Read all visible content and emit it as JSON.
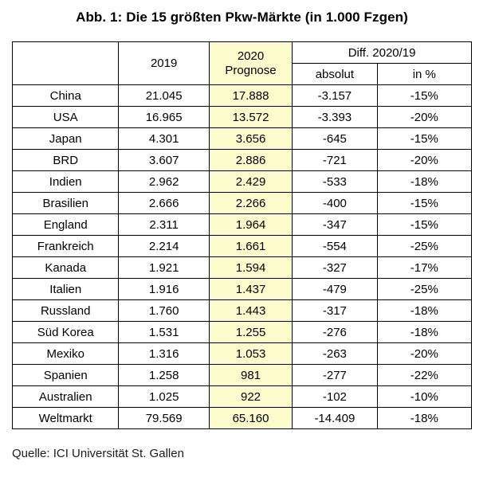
{
  "title": "Abb. 1: Die 15 größten Pkw-Märkte (in 1.000 Fzgen)",
  "source": "Quelle: ICI Universität St. Gallen",
  "colors": {
    "highlight": "#fbfbcb",
    "border": "#000000",
    "background": "#ffffff"
  },
  "table": {
    "header": {
      "corner": "",
      "col2019": "2019",
      "col2020_line1": "2020",
      "col2020_line2": "Prognose",
      "diff_group": "Diff. 2020/19",
      "absolut": "absolut",
      "percent": "in %"
    },
    "rows": [
      {
        "name": "China",
        "y2019": "21.045",
        "y2020": "17.888",
        "abs": "-3.157",
        "pct": "-15%"
      },
      {
        "name": "USA",
        "y2019": "16.965",
        "y2020": "13.572",
        "abs": "-3.393",
        "pct": "-20%"
      },
      {
        "name": "Japan",
        "y2019": "4.301",
        "y2020": "3.656",
        "abs": "-645",
        "pct": "-15%"
      },
      {
        "name": "BRD",
        "y2019": "3.607",
        "y2020": "2.886",
        "abs": "-721",
        "pct": "-20%"
      },
      {
        "name": "Indien",
        "y2019": "2.962",
        "y2020": "2.429",
        "abs": "-533",
        "pct": "-18%"
      },
      {
        "name": "Brasilien",
        "y2019": "2.666",
        "y2020": "2.266",
        "abs": "-400",
        "pct": "-15%"
      },
      {
        "name": "England",
        "y2019": "2.311",
        "y2020": "1.964",
        "abs": "-347",
        "pct": "-15%"
      },
      {
        "name": "Frankreich",
        "y2019": "2.214",
        "y2020": "1.661",
        "abs": "-554",
        "pct": "-25%"
      },
      {
        "name": "Kanada",
        "y2019": "1.921",
        "y2020": "1.594",
        "abs": "-327",
        "pct": "-17%"
      },
      {
        "name": "Italien",
        "y2019": "1.916",
        "y2020": "1.437",
        "abs": "-479",
        "pct": "-25%"
      },
      {
        "name": "Russland",
        "y2019": "1.760",
        "y2020": "1.443",
        "abs": "-317",
        "pct": "-18%"
      },
      {
        "name": "Süd Korea",
        "y2019": "1.531",
        "y2020": "1.255",
        "abs": "-276",
        "pct": "-18%"
      },
      {
        "name": "Mexiko",
        "y2019": "1.316",
        "y2020": "1.053",
        "abs": "-263",
        "pct": "-20%"
      },
      {
        "name": "Spanien",
        "y2019": "1.258",
        "y2020": "981",
        "abs": "-277",
        "pct": "-22%"
      },
      {
        "name": "Australien",
        "y2019": "1.025",
        "y2020": "922",
        "abs": "-102",
        "pct": "-10%"
      },
      {
        "name": "Weltmarkt",
        "y2019": "79.569",
        "y2020": "65.160",
        "abs": "-14.409",
        "pct": "-18%"
      }
    ]
  },
  "chart_data": {
    "type": "table",
    "title": "Abb. 1: Die 15 größten Pkw-Märkte (in 1.000 Fzgen)",
    "unit": "1.000 Fzgen",
    "source": "Quelle: ICI Universität St. Gallen",
    "columns": [
      "",
      "2019",
      "2020 Prognose",
      "Diff. 2020/19 absolut",
      "Diff. 2020/19 in %"
    ],
    "categories": [
      "China",
      "USA",
      "Japan",
      "BRD",
      "Indien",
      "Brasilien",
      "England",
      "Frankreich",
      "Kanada",
      "Italien",
      "Russland",
      "Süd Korea",
      "Mexiko",
      "Spanien",
      "Australien",
      "Weltmarkt"
    ],
    "series": [
      {
        "name": "2019",
        "values": [
          21045,
          16965,
          4301,
          3607,
          2962,
          2666,
          2311,
          2214,
          1921,
          1916,
          1760,
          1531,
          1316,
          1258,
          1025,
          79569
        ]
      },
      {
        "name": "2020 Prognose",
        "values": [
          17888,
          13572,
          3656,
          2886,
          2429,
          2266,
          1964,
          1661,
          1594,
          1437,
          1443,
          1255,
          1053,
          981,
          922,
          65160
        ]
      },
      {
        "name": "Diff. 2020/19 absolut",
        "values": [
          -3157,
          -3393,
          -645,
          -721,
          -533,
          -400,
          -347,
          -554,
          -327,
          -479,
          -317,
          -276,
          -263,
          -277,
          -102,
          -14409
        ]
      },
      {
        "name": "Diff. 2020/19 in %",
        "values": [
          -15,
          -20,
          -15,
          -20,
          -18,
          -15,
          -15,
          -25,
          -17,
          -25,
          -18,
          -18,
          -20,
          -22,
          -10,
          -18
        ]
      }
    ],
    "highlighted_column": "2020 Prognose",
    "bold_rows": [
      "BRD",
      "Weltmarkt"
    ]
  }
}
